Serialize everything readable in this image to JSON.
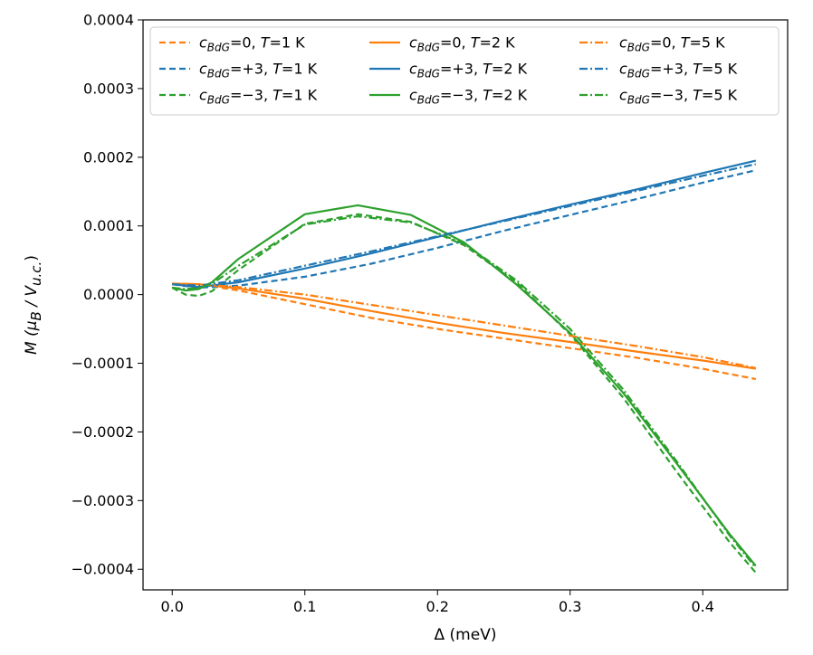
{
  "chart_data": {
    "type": "line",
    "title": "",
    "xlabel": "Δ (meV)",
    "ylabel": "M (μB / Vu.c.)",
    "ylabel_parts": {
      "main": "M (μ",
      "sub1": "B",
      "mid": " / V",
      "sub2": "u.c.",
      "end": ")"
    },
    "xlim": [
      -0.022,
      0.464
    ],
    "ylim": [
      -0.00043,
      0.0004
    ],
    "xticks": [
      0.0,
      0.1,
      0.2,
      0.3,
      0.4
    ],
    "xtick_labels": [
      "0.0",
      "0.1",
      "0.2",
      "0.3",
      "0.4"
    ],
    "yticks": [
      0.0004,
      0.0003,
      0.0002,
      0.0001,
      0.0,
      -0.0001,
      -0.0002,
      -0.0003,
      -0.0004
    ],
    "ytick_labels": [
      "0.0004",
      "0.0003",
      "0.0002",
      "0.0001",
      "0.0000",
      "−0.0001",
      "−0.0002",
      "−0.0003",
      "−0.0004"
    ],
    "grid": false,
    "legend_position": "top",
    "colors": {
      "orange": "#ff7f0e",
      "blue": "#1f77b4",
      "green": "#2ca02c"
    },
    "series": [
      {
        "name": "cBdG=0, T=1 K",
        "c": "0",
        "T": "1",
        "color": "#ff7f0e",
        "style": "dashed",
        "x": [
          0.0,
          0.02,
          0.05,
          0.1,
          0.15,
          0.2,
          0.25,
          0.3,
          0.35,
          0.4,
          0.44
        ],
        "y": [
          1.6e-05,
          1.5e-05,
          6e-06,
          -1.4e-05,
          -3.4e-05,
          -5e-05,
          -6.4e-05,
          -7.8e-05,
          -9.2e-05,
          -0.000108,
          -0.000123
        ]
      },
      {
        "name": "cBdG=+3, T=1 K",
        "c": "+3",
        "T": "1",
        "color": "#1f77b4",
        "style": "dashed",
        "x": [
          0.0,
          0.02,
          0.05,
          0.1,
          0.15,
          0.2,
          0.25,
          0.3,
          0.35,
          0.4,
          0.44
        ],
        "y": [
          1.5e-05,
          1e-05,
          1.3e-05,
          2.6e-05,
          4.5e-05,
          6.8e-05,
          9.3e-05,
          0.000116,
          0.000139,
          0.000163,
          0.000181
        ]
      },
      {
        "name": "cBdG=−3, T=1 K",
        "c": "−3",
        "T": "1",
        "color": "#2ca02c",
        "style": "dashed",
        "x": [
          0.0,
          0.01,
          0.02,
          0.03,
          0.05,
          0.1,
          0.14,
          0.18,
          0.22,
          0.26,
          0.3,
          0.34,
          0.38,
          0.42,
          0.44
        ],
        "y": [
          1e-05,
          0.0,
          -2e-06,
          5e-06,
          3.6e-05,
          0.000103,
          0.000117,
          0.000106,
          7.2e-05,
          1.7e-05,
          -5.8e-05,
          -0.00015,
          -0.000257,
          -0.00036,
          -0.000405
        ]
      },
      {
        "name": "cBdG=0, T=2 K",
        "c": "0",
        "T": "2",
        "color": "#ff7f0e",
        "style": "solid",
        "x": [
          0.0,
          0.02,
          0.05,
          0.1,
          0.15,
          0.2,
          0.25,
          0.3,
          0.35,
          0.4,
          0.44
        ],
        "y": [
          1.6e-05,
          1.5e-05,
          9e-06,
          -6e-06,
          -2.4e-05,
          -4.1e-05,
          -5.6e-05,
          -6.9e-05,
          -8.3e-05,
          -9.6e-05,
          -0.000108
        ]
      },
      {
        "name": "cBdG=+3, T=2 K",
        "c": "+3",
        "T": "2",
        "color": "#1f77b4",
        "style": "solid",
        "x": [
          0.0,
          0.02,
          0.05,
          0.1,
          0.15,
          0.2,
          0.25,
          0.3,
          0.35,
          0.4,
          0.44
        ],
        "y": [
          1.5e-05,
          1.1e-05,
          1.8e-05,
          3.8e-05,
          6e-05,
          8.4e-05,
          0.000108,
          0.000131,
          0.000153,
          0.000177,
          0.000195
        ]
      },
      {
        "name": "cBdG=−3, T=2 K",
        "c": "−3",
        "T": "2",
        "color": "#2ca02c",
        "style": "solid",
        "x": [
          0.0,
          0.01,
          0.02,
          0.03,
          0.05,
          0.1,
          0.14,
          0.18,
          0.22,
          0.26,
          0.3,
          0.34,
          0.38,
          0.42,
          0.44
        ],
        "y": [
          1e-05,
          6e-06,
          8e-06,
          1.8e-05,
          5.2e-05,
          0.000117,
          0.00013,
          0.000116,
          7.6e-05,
          1.4e-05,
          -5.6e-05,
          -0.000143,
          -0.000245,
          -0.000348,
          -0.000395
        ]
      },
      {
        "name": "cBdG=0, T=5 K",
        "c": "0",
        "T": "5",
        "color": "#ff7f0e",
        "style": "dashdot",
        "x": [
          0.0,
          0.02,
          0.05,
          0.1,
          0.15,
          0.2,
          0.25,
          0.3,
          0.35,
          0.4,
          0.44
        ],
        "y": [
          1.6e-05,
          1.5e-05,
          1.1e-05,
          0.0,
          -1.5e-05,
          -3e-05,
          -4.5e-05,
          -6e-05,
          -7.5e-05,
          -9.1e-05,
          -0.000107
        ]
      },
      {
        "name": "cBdG=+3, T=5 K",
        "c": "+3",
        "T": "5",
        "color": "#1f77b4",
        "style": "dashdot",
        "x": [
          0.0,
          0.02,
          0.05,
          0.1,
          0.15,
          0.2,
          0.25,
          0.3,
          0.35,
          0.4,
          0.44
        ],
        "y": [
          1.5e-05,
          1.3e-05,
          2.1e-05,
          4.2e-05,
          6.3e-05,
          8.5e-05,
          0.000107,
          0.000129,
          0.000151,
          0.000173,
          0.00019
        ]
      },
      {
        "name": "cBdG=−3, T=5 K",
        "c": "−3",
        "T": "5",
        "color": "#2ca02c",
        "style": "dashdot",
        "x": [
          0.0,
          0.01,
          0.02,
          0.03,
          0.05,
          0.1,
          0.14,
          0.18,
          0.22,
          0.26,
          0.3,
          0.34,
          0.38,
          0.42,
          0.44
        ],
        "y": [
          1e-05,
          8e-06,
          1e-05,
          1.6e-05,
          4.2e-05,
          0.000102,
          0.000114,
          0.000105,
          7.4e-05,
          2e-05,
          -5e-05,
          -0.000138,
          -0.000242,
          -0.00035,
          -0.000398
        ]
      }
    ]
  }
}
